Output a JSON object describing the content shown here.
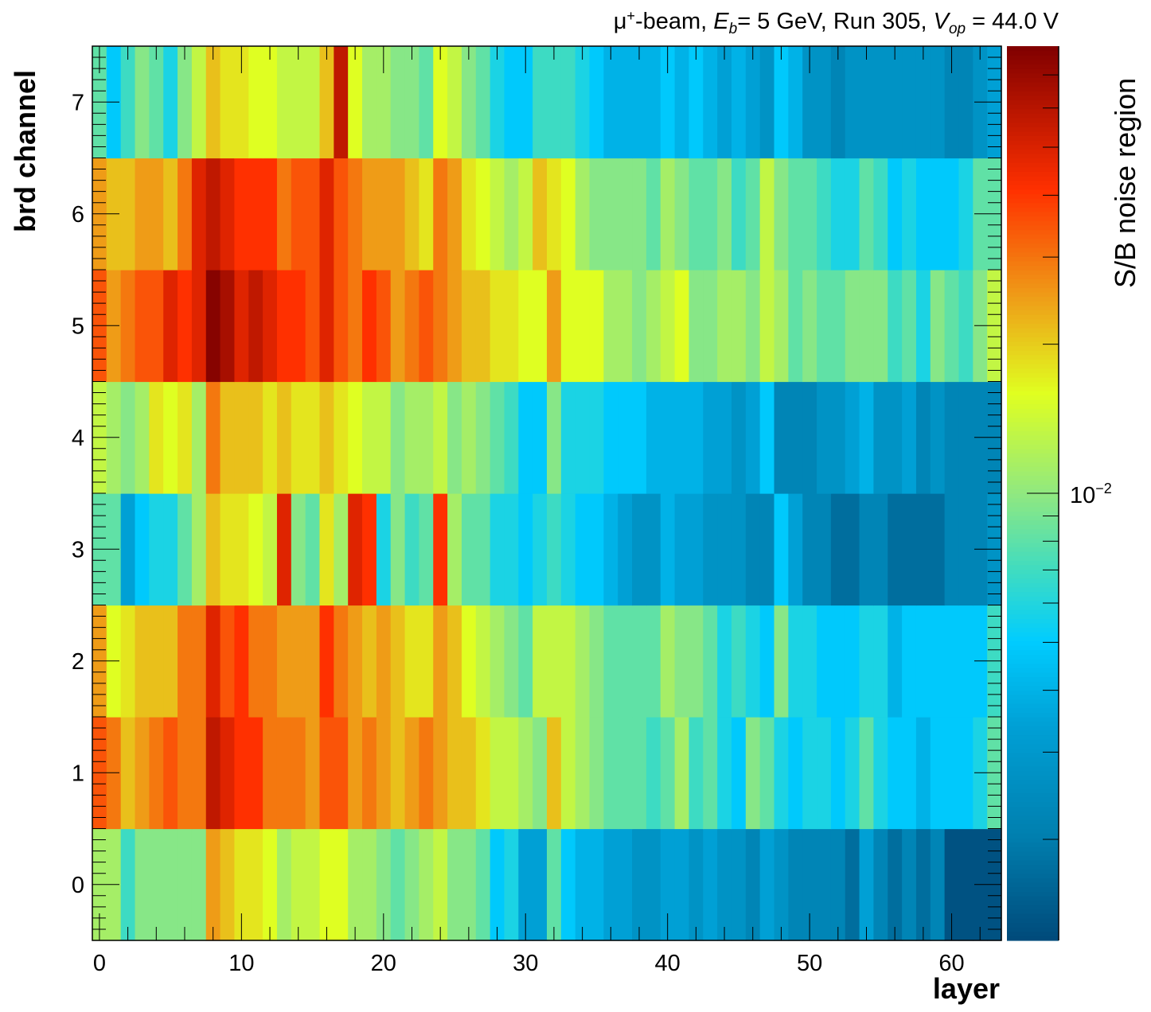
{
  "title": {
    "prefix": "μ",
    "charge": "+",
    "beam": "-beam, ",
    "eb_symbol": "E",
    "eb_sub": "b",
    "eb_value": "= 5 GeV, Run 305, ",
    "vop_symbol": "V",
    "vop_sub": "op",
    "vop_value": " = 44.0 V"
  },
  "colors": {
    "stops": [
      [
        0.0,
        "#004a7a"
      ],
      [
        0.12,
        "#0080b0"
      ],
      [
        0.24,
        "#00a0d5"
      ],
      [
        0.335,
        "#00ccff"
      ],
      [
        0.415,
        "#40dcc0"
      ],
      [
        0.5,
        "#90e880"
      ],
      [
        0.612,
        "#e0ff20"
      ],
      [
        0.716,
        "#eea018"
      ],
      [
        0.84,
        "#ff3000"
      ],
      [
        1.0,
        "#800000"
      ]
    ]
  },
  "chart_data": {
    "type": "heatmap",
    "title": "μ+-beam, E_b= 5 GeV, Run 305, V_op = 44.0 V",
    "xlabel": "layer",
    "ylabel": "brd channel",
    "zlabel": "S/B noise region",
    "xlim": [
      -0.5,
      63.5
    ],
    "ylim": [
      -0.5,
      7.5
    ],
    "zlim": [
      0.00125,
      0.08
    ],
    "zscale": "log",
    "xticks": [
      "0",
      "10",
      "20",
      "30",
      "40",
      "50",
      "60"
    ],
    "yticks": [
      "0",
      "1",
      "2",
      "3",
      "4",
      "5",
      "6",
      "7"
    ],
    "zticks": [
      {
        "base": "10",
        "exp": "−2",
        "value": 0.01
      }
    ],
    "z": [
      [
        0.0113,
        0.0113,
        0.0069,
        0.0096,
        0.0096,
        0.0096,
        0.0096,
        0.0096,
        0.025,
        0.0212,
        0.0179,
        0.0179,
        0.0158,
        0.0113,
        0.0134,
        0.0134,
        0.0158,
        0.0158,
        0.0113,
        0.0113,
        0.0096,
        0.0081,
        0.0096,
        0.0113,
        0.0134,
        0.0096,
        0.0096,
        0.0081,
        0.0049,
        0.0058,
        0.00338,
        0.00338,
        0.0081,
        0.0049,
        0.004,
        0.004,
        0.00338,
        0.00338,
        0.00275,
        0.00275,
        0.00338,
        0.00338,
        0.00275,
        0.00338,
        0.00275,
        0.00275,
        0.00223,
        0.00338,
        0.00275,
        0.00223,
        0.00223,
        0.00223,
        0.00223,
        0.00174,
        0.00338,
        0.00223,
        0.00174,
        0.00223,
        0.00174,
        0.00223,
        0.00135,
        0.00135,
        0.00135,
        0.00135
      ],
      [
        0.0349,
        0.0295,
        0.0212,
        0.025,
        0.0295,
        0.0349,
        0.0295,
        0.0295,
        0.0575,
        0.0487,
        0.0412,
        0.0412,
        0.0295,
        0.0295,
        0.0295,
        0.025,
        0.0349,
        0.0349,
        0.025,
        0.0295,
        0.025,
        0.0212,
        0.025,
        0.0295,
        0.025,
        0.0212,
        0.0212,
        0.0179,
        0.0134,
        0.0134,
        0.0113,
        0.0096,
        0.0212,
        0.0134,
        0.0113,
        0.0096,
        0.0081,
        0.0081,
        0.0081,
        0.0069,
        0.0081,
        0.0113,
        0.0069,
        0.0081,
        0.0058,
        0.0049,
        0.0096,
        0.0081,
        0.0058,
        0.0049,
        0.0058,
        0.0058,
        0.0049,
        0.0058,
        0.0081,
        0.0058,
        0.0049,
        0.0049,
        0.004,
        0.0049,
        0.0049,
        0.0049,
        0.0058,
        0.0081
      ],
      [
        0.025,
        0.0158,
        0.0179,
        0.0212,
        0.0212,
        0.0212,
        0.0295,
        0.0295,
        0.0487,
        0.0349,
        0.0412,
        0.0295,
        0.0295,
        0.025,
        0.025,
        0.025,
        0.0412,
        0.0295,
        0.025,
        0.0212,
        0.025,
        0.0212,
        0.0179,
        0.0179,
        0.025,
        0.0212,
        0.0158,
        0.0134,
        0.0113,
        0.0096,
        0.0081,
        0.0134,
        0.0134,
        0.0134,
        0.0113,
        0.0096,
        0.0081,
        0.0081,
        0.0081,
        0.0081,
        0.0113,
        0.0096,
        0.0096,
        0.0081,
        0.0058,
        0.0069,
        0.0058,
        0.0049,
        0.0096,
        0.0058,
        0.0058,
        0.0049,
        0.0049,
        0.0049,
        0.0058,
        0.0058,
        0.004,
        0.0049,
        0.0049,
        0.0049,
        0.0049,
        0.0049,
        0.0049,
        0.0069
      ],
      [
        0.0081,
        0.0081,
        0.00338,
        0.0049,
        0.0058,
        0.0058,
        0.0081,
        0.0113,
        0.0212,
        0.0179,
        0.0179,
        0.0158,
        0.0134,
        0.0487,
        0.0096,
        0.0081,
        0.0179,
        0.0113,
        0.0487,
        0.0412,
        0.0058,
        0.0096,
        0.0069,
        0.0081,
        0.0412,
        0.0113,
        0.0081,
        0.0081,
        0.0058,
        0.0058,
        0.0049,
        0.0058,
        0.0069,
        0.0058,
        0.0049,
        0.0049,
        0.004,
        0.00338,
        0.00275,
        0.00275,
        0.004,
        0.00338,
        0.00338,
        0.00275,
        0.00275,
        0.00275,
        0.00223,
        0.00223,
        0.0049,
        0.00338,
        0.00223,
        0.00223,
        0.00174,
        0.00174,
        0.00223,
        0.00223,
        0.00174,
        0.00174,
        0.00174,
        0.00174,
        0.00223,
        0.00223,
        0.00223,
        0.00275
      ],
      [
        0.0134,
        0.0113,
        0.0096,
        0.0113,
        0.0179,
        0.0158,
        0.0179,
        0.0113,
        0.0295,
        0.0212,
        0.0212,
        0.0212,
        0.0179,
        0.0212,
        0.0179,
        0.0179,
        0.0212,
        0.0179,
        0.0158,
        0.0134,
        0.0134,
        0.0096,
        0.0113,
        0.0113,
        0.0134,
        0.0096,
        0.0113,
        0.0096,
        0.0081,
        0.0069,
        0.0049,
        0.0049,
        0.0096,
        0.0058,
        0.0058,
        0.0058,
        0.0049,
        0.0049,
        0.0049,
        0.004,
        0.004,
        0.004,
        0.004,
        0.00338,
        0.00338,
        0.00275,
        0.00338,
        0.0049,
        0.00223,
        0.00223,
        0.00223,
        0.00275,
        0.00275,
        0.00338,
        0.004,
        0.00275,
        0.00275,
        0.00338,
        0.00223,
        0.00275,
        0.00223,
        0.00223,
        0.00223,
        0.00223
      ],
      [
        0.0349,
        0.025,
        0.0295,
        0.0349,
        0.0349,
        0.0487,
        0.0412,
        0.0487,
        0.0771,
        0.0652,
        0.0487,
        0.0575,
        0.0487,
        0.0412,
        0.0412,
        0.0349,
        0.0487,
        0.0349,
        0.0295,
        0.0412,
        0.0349,
        0.025,
        0.0295,
        0.0349,
        0.0295,
        0.025,
        0.0212,
        0.0212,
        0.0179,
        0.0179,
        0.0158,
        0.0158,
        0.025,
        0.0158,
        0.0158,
        0.0158,
        0.0113,
        0.0113,
        0.0096,
        0.0113,
        0.0134,
        0.0158,
        0.0096,
        0.0096,
        0.0113,
        0.0113,
        0.0096,
        0.0134,
        0.0113,
        0.0081,
        0.0096,
        0.0081,
        0.0081,
        0.0096,
        0.0096,
        0.0096,
        0.0069,
        0.0081,
        0.0058,
        0.0096,
        0.0081,
        0.0069,
        0.0096,
        0.0134
      ],
      [
        0.025,
        0.0212,
        0.0212,
        0.025,
        0.025,
        0.0212,
        0.0295,
        0.0487,
        0.0575,
        0.0487,
        0.0412,
        0.0412,
        0.0412,
        0.0295,
        0.0349,
        0.0349,
        0.0487,
        0.0349,
        0.0295,
        0.025,
        0.025,
        0.025,
        0.0212,
        0.0179,
        0.0295,
        0.025,
        0.0179,
        0.0158,
        0.0134,
        0.0113,
        0.0134,
        0.0212,
        0.0179,
        0.0158,
        0.0113,
        0.0096,
        0.0096,
        0.0096,
        0.0096,
        0.0081,
        0.0113,
        0.0096,
        0.0081,
        0.0081,
        0.0096,
        0.0069,
        0.0081,
        0.0134,
        0.0096,
        0.0081,
        0.0081,
        0.0069,
        0.0058,
        0.0058,
        0.0081,
        0.0069,
        0.0049,
        0.0058,
        0.0049,
        0.0049,
        0.0049,
        0.0058,
        0.0081,
        0.0081
      ],
      [
        0.0081,
        0.0049,
        0.0069,
        0.0096,
        0.0081,
        0.0058,
        0.0096,
        0.0134,
        0.0212,
        0.0179,
        0.0179,
        0.0158,
        0.0158,
        0.0134,
        0.0134,
        0.0134,
        0.0212,
        0.0575,
        0.0158,
        0.0113,
        0.0113,
        0.0096,
        0.0096,
        0.0081,
        0.0158,
        0.0134,
        0.0096,
        0.0081,
        0.0058,
        0.0049,
        0.0049,
        0.0069,
        0.0069,
        0.0069,
        0.0058,
        0.0049,
        0.004,
        0.004,
        0.004,
        0.004,
        0.0049,
        0.004,
        0.0049,
        0.004,
        0.00338,
        0.004,
        0.00338,
        0.00275,
        0.0049,
        0.004,
        0.00275,
        0.00275,
        0.00223,
        0.00275,
        0.00275,
        0.00275,
        0.00275,
        0.00275,
        0.00275,
        0.00275,
        0.00223,
        0.00223,
        0.00275,
        0.00338
      ]
    ]
  }
}
